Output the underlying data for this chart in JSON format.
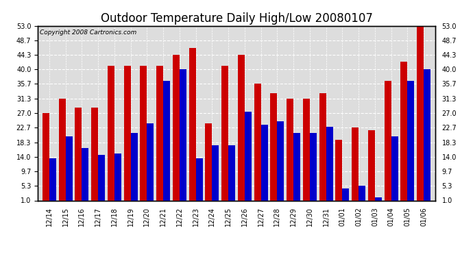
{
  "title": "Outdoor Temperature Daily High/Low 20080107",
  "copyright": "Copyright 2008 Cartronics.com",
  "categories": [
    "12/14",
    "12/15",
    "12/16",
    "12/17",
    "12/18",
    "12/19",
    "12/20",
    "12/21",
    "12/22",
    "12/23",
    "12/24",
    "12/25",
    "12/26",
    "12/27",
    "12/28",
    "12/29",
    "12/30",
    "12/31",
    "01/01",
    "01/02",
    "01/03",
    "01/04",
    "01/05",
    "01/06"
  ],
  "high": [
    27.0,
    31.3,
    28.7,
    28.7,
    41.0,
    41.0,
    41.0,
    41.0,
    44.3,
    46.4,
    24.0,
    41.0,
    44.3,
    35.7,
    33.0,
    31.3,
    31.3,
    33.0,
    19.0,
    22.7,
    22.0,
    36.5,
    42.3,
    53.0
  ],
  "low": [
    13.5,
    20.0,
    16.5,
    14.5,
    15.0,
    21.0,
    24.0,
    36.5,
    40.0,
    13.5,
    17.5,
    17.5,
    27.5,
    23.5,
    24.5,
    21.0,
    21.0,
    23.0,
    4.5,
    5.3,
    2.0,
    20.0,
    36.5,
    40.0
  ],
  "high_color": "#cc0000",
  "low_color": "#0000cc",
  "bg_color": "#ffffff",
  "plot_bg_color": "#dddddd",
  "grid_color": "#ffffff",
  "yticks": [
    1.0,
    5.3,
    9.7,
    14.0,
    18.3,
    22.7,
    27.0,
    31.3,
    35.7,
    40.0,
    44.3,
    48.7,
    53.0
  ],
  "ymin": 1.0,
  "ymax": 53.0,
  "title_fontsize": 12,
  "bar_width": 0.42,
  "figwidth": 6.9,
  "figheight": 3.75,
  "dpi": 100
}
